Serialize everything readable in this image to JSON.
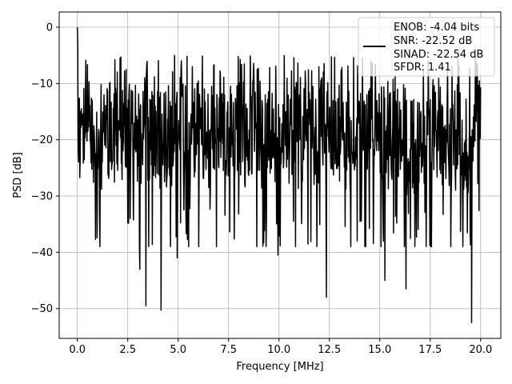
{
  "chart_data": {
    "type": "line",
    "title": "",
    "xlabel": "Frequency [MHz]",
    "ylabel": "PSD [dB]",
    "xlim": [
      -0.9,
      21.0
    ],
    "ylim": [
      -55.3,
      2.7
    ],
    "xticks": [
      0.0,
      2.5,
      5.0,
      7.5,
      10.0,
      12.5,
      15.0,
      17.5,
      20.0
    ],
    "xtick_labels": [
      "0.0",
      "2.5",
      "5.0",
      "7.5",
      "10.0",
      "12.5",
      "15.0",
      "17.5",
      "20.0"
    ],
    "yticks": [
      0,
      -10,
      -20,
      -30,
      -40,
      -50
    ],
    "ytick_labels": [
      "0",
      "−10",
      "−20",
      "−30",
      "−40",
      "−50"
    ],
    "grid": true,
    "legend_position": "top-right",
    "color": "#000000",
    "series": [
      {
        "x_range": [
          0.0,
          20.0
        ],
        "dc_peak": 0,
        "typical_upper": -10,
        "typical_lower": -28,
        "max_excursion_upper": -5,
        "notable_minima": [
          {
            "x": 3.4,
            "y": -49.5
          },
          {
            "x": 4.15,
            "y": -50.3
          },
          {
            "x": 12.35,
            "y": -48
          },
          {
            "x": 16.3,
            "y": -46.5
          },
          {
            "x": 19.55,
            "y": -52.5
          },
          {
            "x": 3.1,
            "y": -43
          },
          {
            "x": 4.95,
            "y": -41
          },
          {
            "x": 9.95,
            "y": -40.5
          },
          {
            "x": 15.25,
            "y": -45
          }
        ]
      }
    ],
    "legend": [
      "ENOB: -4.04 bits",
      "SNR: -22.52 dB",
      "SINAD: -22.54 dB",
      "SFDR: 1.41"
    ]
  }
}
